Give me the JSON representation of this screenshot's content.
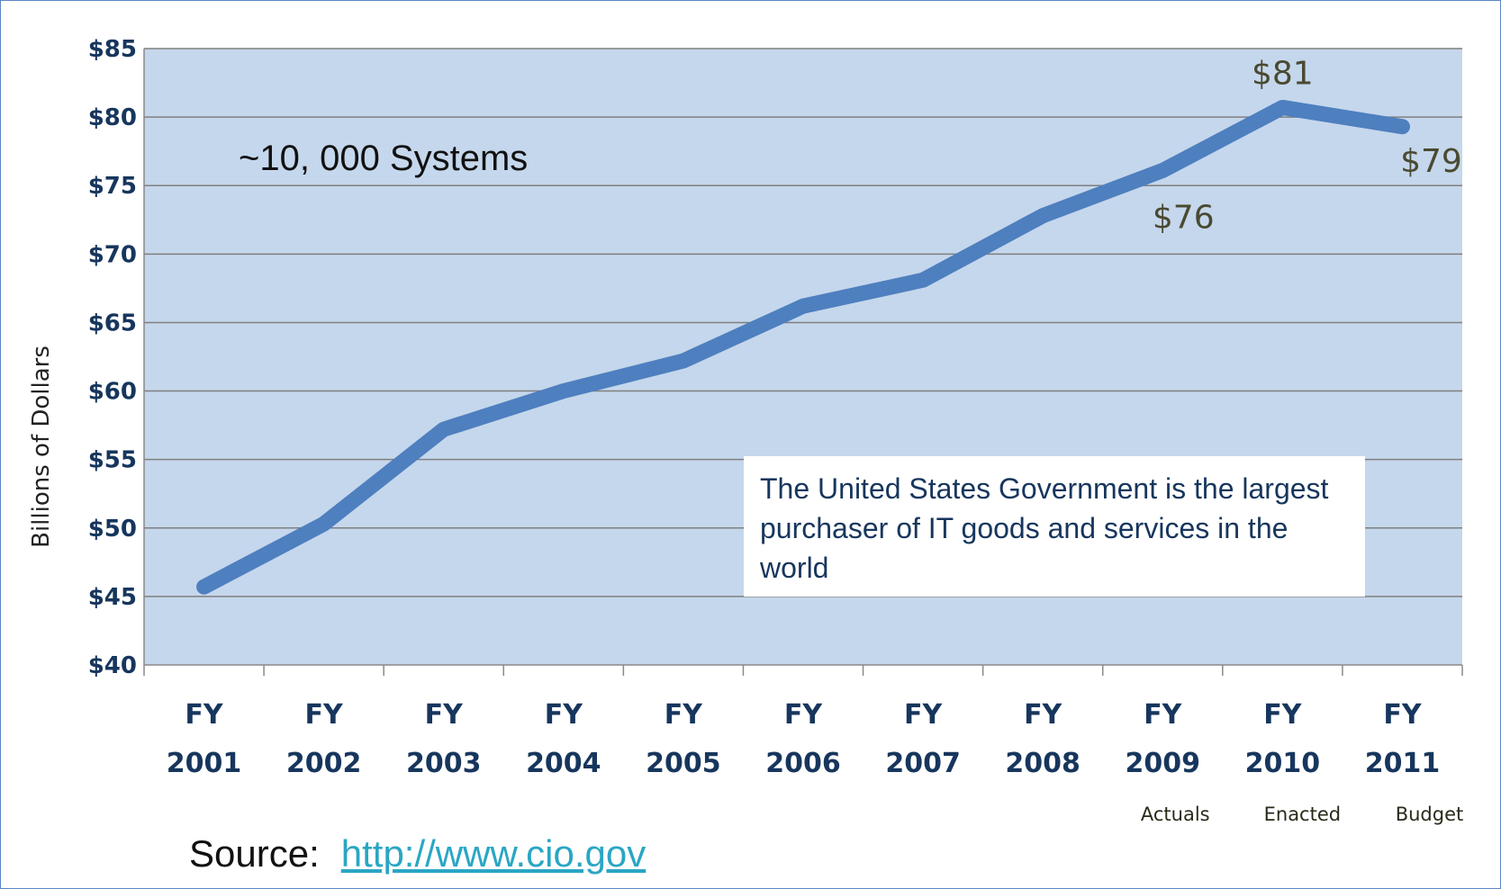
{
  "chart_data": {
    "type": "line",
    "ylabel": "Billions of Dollars",
    "ylim": [
      40,
      85
    ],
    "yticks": [
      40,
      45,
      50,
      55,
      60,
      65,
      70,
      75,
      80,
      85
    ],
    "ytick_labels": [
      "$40",
      "$45",
      "$50",
      "$55",
      "$60",
      "$65",
      "$70",
      "$75",
      "$80",
      "$85"
    ],
    "categories": [
      {
        "line1": "FY",
        "line2": "2001",
        "note": ""
      },
      {
        "line1": "FY",
        "line2": "2002",
        "note": ""
      },
      {
        "line1": "FY",
        "line2": "2003",
        "note": ""
      },
      {
        "line1": "FY",
        "line2": "2004",
        "note": ""
      },
      {
        "line1": "FY",
        "line2": "2005",
        "note": ""
      },
      {
        "line1": "FY",
        "line2": "2006",
        "note": ""
      },
      {
        "line1": "FY",
        "line2": "2007",
        "note": ""
      },
      {
        "line1": "FY",
        "line2": "2008",
        "note": ""
      },
      {
        "line1": "FY",
        "line2": "2009",
        "note": "Actuals"
      },
      {
        "line1": "FY",
        "line2": "2010",
        "note": "Enacted"
      },
      {
        "line1": "FY",
        "line2": "2011",
        "note": "Budget"
      }
    ],
    "values": [
      45.7,
      50.3,
      57.2,
      60.0,
      62.2,
      66.2,
      68.1,
      72.8,
      76.1,
      80.7,
      79.3
    ],
    "data_labels": [
      {
        "index": 8,
        "text": "$76",
        "position": "below"
      },
      {
        "index": 9,
        "text": "$81",
        "position": "above"
      },
      {
        "index": 10,
        "text": "$79",
        "position": "below"
      }
    ],
    "grid": true,
    "legend": "none",
    "colors": {
      "plot_bg": "#c5d7ec",
      "line": "#4e7fbf",
      "grid": "#7f7f7f",
      "tick_text": "#17365d"
    }
  },
  "annotation": {
    "systems": "~10, 000 Systems"
  },
  "note_box": {
    "text": "The United States Government is the largest purchaser of IT goods and services in the world"
  },
  "source": {
    "label": "Source:",
    "link": "http://www.cio.gov"
  }
}
